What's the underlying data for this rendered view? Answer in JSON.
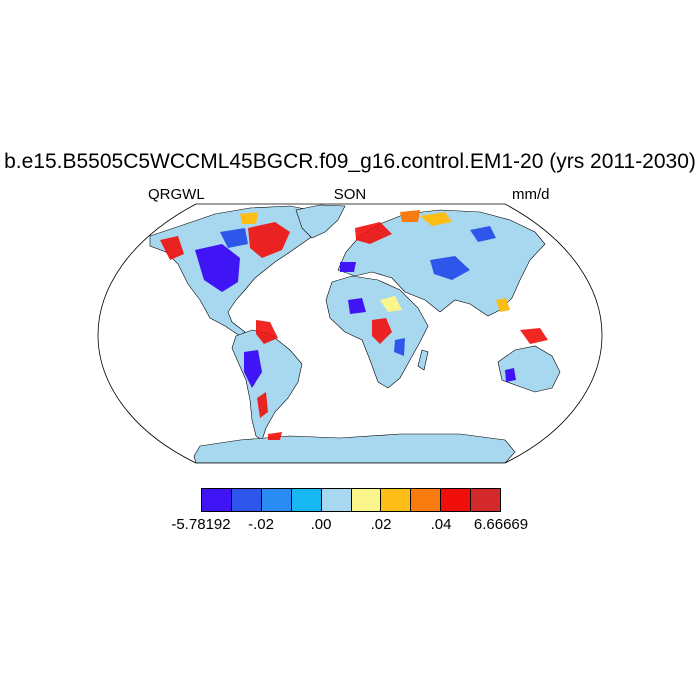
{
  "title": "b.e15.B5505C5WCCML45BGCR.f09_g16.control.EM1-20 (yrs 2011-2030)",
  "left_label": "QRGWL",
  "center_label": "SON",
  "right_label": "mm/d",
  "colorbar": {
    "colors": [
      "#3f14f5",
      "#2f56ea",
      "#2a8bf3",
      "#18b8f2",
      "#a8d8f0",
      "#fbf58c",
      "#fbbd16",
      "#f77b0e",
      "#f10f0c",
      "#d42a2b"
    ],
    "labels": [
      "-5.78192",
      "-.02",
      ".00",
      ".02",
      ".04",
      "6.66669"
    ]
  },
  "map_colors": {
    "land": "#a8d8f0",
    "ocean": "#ffffff",
    "outline": "#000000"
  }
}
